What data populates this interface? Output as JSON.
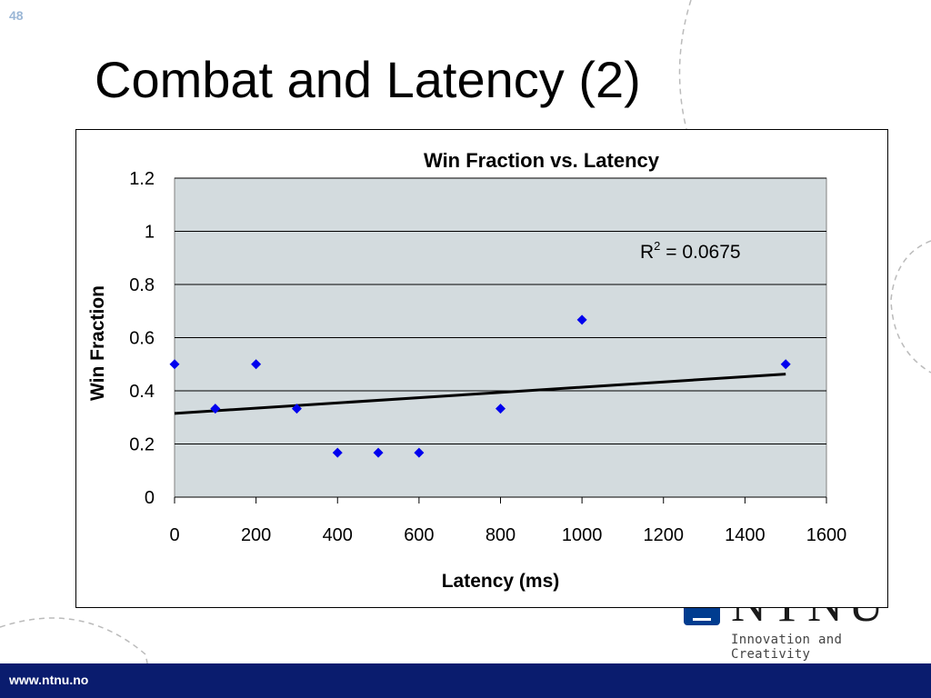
{
  "slide": {
    "number": "48",
    "title": "Combat and Latency (2)",
    "footer_url": "www.ntnu.no",
    "logo_word": "NTNU",
    "logo_tagline": "Innovation and Creativity"
  },
  "colors": {
    "footer": "#0a1c6e",
    "plot_bg": "#d3dbde",
    "marker": "#0000ee",
    "trendline": "#000000"
  },
  "chart_data": {
    "type": "scatter",
    "title": "Win Fraction vs. Latency",
    "xlabel": "Latency (ms)",
    "ylabel": "Win Fraction",
    "xlim": [
      0,
      1600
    ],
    "ylim": [
      0,
      1.2
    ],
    "x_ticks": [
      0,
      200,
      400,
      600,
      800,
      1000,
      1200,
      1400,
      1600
    ],
    "y_ticks": [
      0,
      0.2,
      0.4,
      0.6,
      0.8,
      1,
      1.2
    ],
    "x_tick_labels": [
      "0",
      "200",
      "400",
      "600",
      "800",
      "1000",
      "1200",
      "1400",
      "1600"
    ],
    "y_tick_labels": [
      "0",
      "0.2",
      "0.4",
      "0.6",
      "0.8",
      "1",
      "1.2"
    ],
    "grid": "horizontal",
    "legend": "none",
    "points": [
      {
        "x": 0,
        "y": 0.5
      },
      {
        "x": 100,
        "y": 0.333
      },
      {
        "x": 200,
        "y": 0.5
      },
      {
        "x": 300,
        "y": 0.333
      },
      {
        "x": 400,
        "y": 0.167
      },
      {
        "x": 500,
        "y": 0.167
      },
      {
        "x": 600,
        "y": 0.167
      },
      {
        "x": 800,
        "y": 0.333
      },
      {
        "x": 1000,
        "y": 0.667
      },
      {
        "x": 1500,
        "y": 0.5
      }
    ],
    "trendline": {
      "type": "linear",
      "x": [
        0,
        1500
      ],
      "y": [
        0.315,
        0.463
      ]
    },
    "r2_label_prefix": "R",
    "r2_label_sup": "2",
    "r2_label_value": " = 0.0675"
  }
}
